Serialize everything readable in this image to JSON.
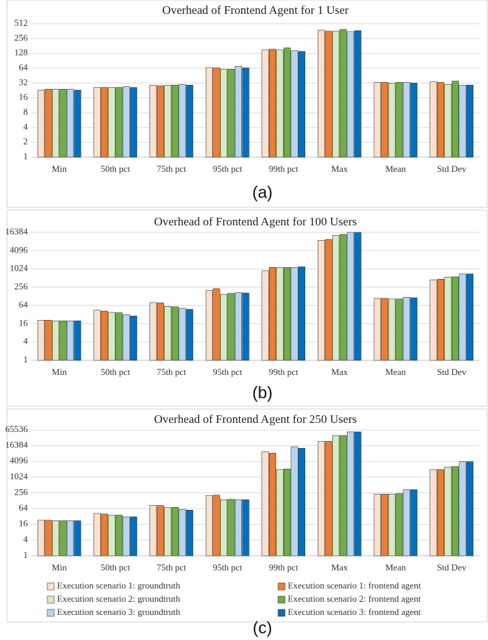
{
  "chart_data": [
    {
      "type": "bar",
      "title": "Overhead of Frontend Agent for 1 User",
      "label": "(a)",
      "log_scale": true,
      "grid": true,
      "categories": [
        "Min",
        "50th pct",
        "75th pct",
        "95th pct",
        "99th pct",
        "Max",
        "Mean",
        "Std Dev"
      ],
      "ylim": [
        1,
        512
      ],
      "yticks": [
        1,
        2,
        4,
        8,
        16,
        32,
        64,
        128,
        256,
        512
      ],
      "series": [
        {
          "color": "#fbe0cf",
          "values": [
            23,
            26,
            29,
            66,
            150,
            380,
            33,
            34
          ]
        },
        {
          "color": "#ed7d31",
          "values": [
            24,
            26,
            28,
            65,
            155,
            360,
            33,
            33
          ]
        },
        {
          "color": "#d6ecc0",
          "values": [
            24,
            26,
            29,
            61,
            150,
            360,
            32,
            30
          ]
        },
        {
          "color": "#70ad47",
          "values": [
            24,
            26,
            29,
            61,
            165,
            390,
            33,
            35
          ]
        },
        {
          "color": "#b8d4f0",
          "values": [
            24,
            27,
            30,
            70,
            145,
            350,
            33,
            29
          ]
        },
        {
          "color": "#0070c0",
          "values": [
            23,
            26,
            29,
            65,
            140,
            370,
            32,
            29
          ]
        }
      ]
    },
    {
      "type": "bar",
      "title": "Overhead of Frontend Agent for 100 Users",
      "label": "(b)",
      "log_scale": true,
      "grid": true,
      "categories": [
        "Min",
        "50th pct",
        "75th pct",
        "95th pct",
        "99th pct",
        "Max",
        "Mean",
        "Std Dev"
      ],
      "ylim": [
        1,
        16384
      ],
      "yticks": [
        1,
        4,
        16,
        64,
        256,
        1024,
        4096,
        16384
      ],
      "series": [
        {
          "color": "#fbe0cf",
          "values": [
            21,
            45,
            80,
            200,
            900,
            9000,
            110,
            450
          ]
        },
        {
          "color": "#ed7d31",
          "values": [
            21,
            42,
            78,
            230,
            1150,
            9500,
            110,
            470
          ]
        },
        {
          "color": "#d6ecc0",
          "values": [
            20,
            38,
            60,
            150,
            1150,
            13000,
            105,
            550
          ]
        },
        {
          "color": "#70ad47",
          "values": [
            20,
            37,
            58,
            160,
            1150,
            14000,
            105,
            560
          ]
        },
        {
          "color": "#b8d4f0",
          "values": [
            20,
            32,
            52,
            170,
            1150,
            16384,
            120,
            700
          ]
        },
        {
          "color": "#0070c0",
          "values": [
            20,
            29,
            48,
            165,
            1200,
            16384,
            115,
            700
          ]
        }
      ]
    },
    {
      "type": "bar",
      "title": "Overhead of Frontend Agent for 250 Users",
      "label": "(c)",
      "log_scale": true,
      "grid": true,
      "categories": [
        "Min",
        "50th pct",
        "75th pct",
        "95th pct",
        "99th pct",
        "Max",
        "Mean",
        "Std Dev"
      ],
      "ylim": [
        1,
        65536
      ],
      "yticks": [
        1,
        4,
        16,
        64,
        256,
        1024,
        4096,
        16384,
        65536
      ],
      "legend": "bottom",
      "series": [
        {
          "name": "Execution scenario 1: groundtruth",
          "color": "#fbe0cf",
          "values": [
            23,
            42,
            85,
            200,
            9500,
            24000,
            230,
            2000
          ]
        },
        {
          "name": "Execution scenario 1: frontend agent",
          "color": "#ed7d31",
          "values": [
            23,
            40,
            84,
            210,
            8500,
            24000,
            230,
            2000
          ]
        },
        {
          "name": "Execution scenario 2: groundtruth",
          "color": "#d6ecc0",
          "values": [
            22,
            36,
            70,
            140,
            2000,
            40000,
            230,
            2500
          ]
        },
        {
          "name": "Execution scenario 2: frontend agent",
          "color": "#70ad47",
          "values": [
            22,
            36,
            72,
            145,
            2100,
            40000,
            240,
            2600
          ]
        },
        {
          "name": "Execution scenario 3: groundtruth",
          "color": "#b8d4f0",
          "values": [
            22,
            31,
            60,
            140,
            15000,
            55000,
            340,
            4000
          ]
        },
        {
          "name": "Execution scenario 3: frontend agent",
          "color": "#0070c0",
          "values": [
            22,
            31,
            56,
            140,
            13000,
            55000,
            340,
            4000
          ]
        }
      ]
    }
  ]
}
